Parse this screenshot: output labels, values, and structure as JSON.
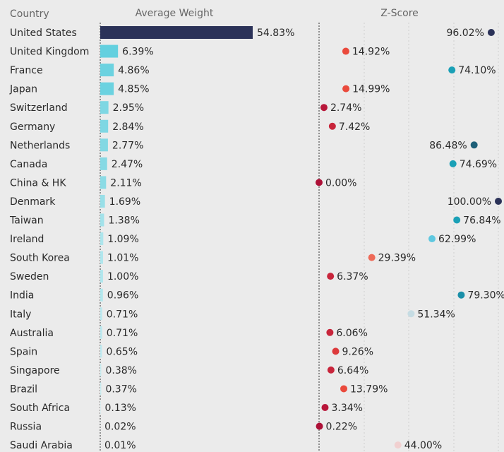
{
  "chart_data": {
    "type": "bar",
    "category_label": "Country",
    "categories": [
      "United States",
      "United Kingdom",
      "France",
      "Japan",
      "Switzerland",
      "Germany",
      "Netherlands",
      "Canada",
      "China & HK",
      "Denmark",
      "Taiwan",
      "Ireland",
      "South Korea",
      "Sweden",
      "India",
      "Italy",
      "Australia",
      "Spain",
      "Singapore",
      "Brazil",
      "South Africa",
      "Russia",
      "Saudi Arabia"
    ],
    "series": [
      {
        "name": "Average Weight",
        "type": "bar",
        "values": [
          54.83,
          6.39,
          4.86,
          4.85,
          2.95,
          2.84,
          2.77,
          2.47,
          2.11,
          1.69,
          1.38,
          1.09,
          1.01,
          1.0,
          0.96,
          0.71,
          0.71,
          0.65,
          0.38,
          0.37,
          0.13,
          0.02,
          0.01
        ],
        "value_labels": [
          "54.83%",
          "6.39%",
          "4.86%",
          "4.85%",
          "2.95%",
          "2.84%",
          "2.77%",
          "2.47%",
          "2.11%",
          "1.69%",
          "1.38%",
          "1.09%",
          "1.01%",
          "1.00%",
          "0.96%",
          "0.71%",
          "0.71%",
          "0.65%",
          "0.38%",
          "0.37%",
          "0.13%",
          "0.02%",
          "0.01%"
        ],
        "colors": [
          "#2b3258",
          "#63d0df",
          "#6bd2e0",
          "#6bd2e0",
          "#7fd7e3",
          "#7fd7e3",
          "#82d8e3",
          "#86d9e4",
          "#8bdbe5",
          "#98dfe8",
          "#a2e2ea",
          "#ade5ec",
          "#b0e6ed",
          "#b0e6ed",
          "#b2e7ed",
          "#bde9ef",
          "#bde9ef",
          "#c0eaf0",
          "#cbeef2",
          "#cbeef2",
          "#d3f0f4",
          "#d8f2f5",
          "#d8f2f5"
        ]
      },
      {
        "name": "Z-Score",
        "type": "dot",
        "values": [
          96.02,
          14.92,
          74.1,
          14.99,
          2.74,
          7.42,
          86.48,
          74.69,
          0.0,
          100.0,
          76.84,
          62.99,
          29.39,
          6.37,
          79.3,
          51.34,
          6.06,
          9.26,
          6.64,
          13.79,
          3.34,
          0.22,
          44.0
        ],
        "value_labels": [
          "96.02%",
          "14.92%",
          "74.10%",
          "14.99%",
          "2.74%",
          "7.42%",
          "86.48%",
          "74.69%",
          "0.00%",
          "100.00%",
          "76.84%",
          "62.99%",
          "29.39%",
          "6.37%",
          "79.30%",
          "51.34%",
          "6.06%",
          "9.26%",
          "6.64%",
          "13.79%",
          "3.34%",
          "0.22%",
          "44.00%"
        ],
        "colors": [
          "#2b3258",
          "#ea4a3c",
          "#1aa0b6",
          "#ea4a3c",
          "#b8163a",
          "#c8253b",
          "#1d5f78",
          "#1aa0b6",
          "#ad1037",
          "#2b3258",
          "#1aa0b6",
          "#5fc8e0",
          "#ee6a58",
          "#c8253b",
          "#1a8fa8",
          "#c6dce3",
          "#c8253b",
          "#dd3a3c",
          "#c8253b",
          "#ea4a3c",
          "#b8163a",
          "#ad1037",
          "#f1d0d0"
        ]
      }
    ]
  }
}
